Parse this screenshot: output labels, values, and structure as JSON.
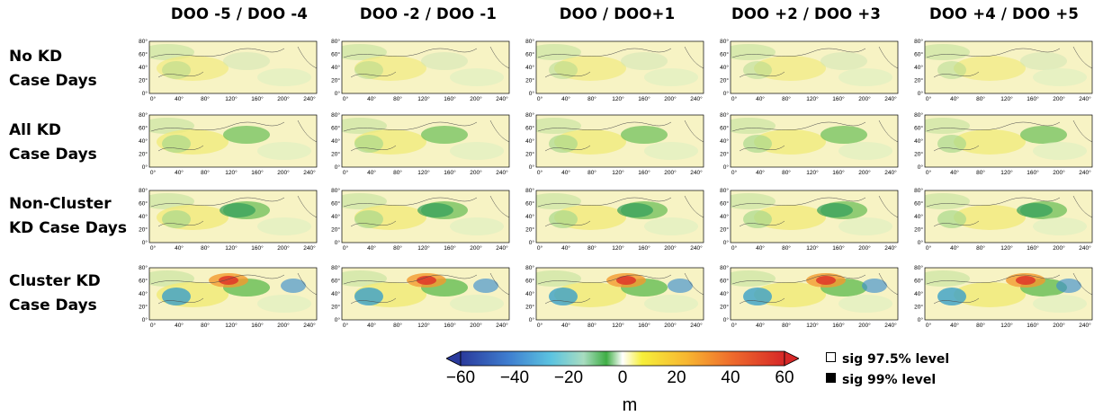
{
  "columns": [
    "DOO -5 / DOO -4",
    "DOO -2 / DOO -1",
    "DOO / DOO+1",
    "DOO +2 / DOO +3",
    "DOO +4 / DOO +5"
  ],
  "rows": [
    {
      "line1": "No KD",
      "line2": "Case Days"
    },
    {
      "line1": "All KD",
      "line2": "Case Days"
    },
    {
      "line1": "Non-Cluster",
      "line2": "KD Case Days"
    },
    {
      "line1": "Cluster KD",
      "line2": "Case Days"
    }
  ],
  "map_axes": {
    "y_ticks": [
      "0°",
      "20°",
      "40°",
      "60°",
      "80°"
    ],
    "x_ticks": [
      "0°",
      "40°",
      "80°",
      "120°",
      "160°",
      "200°",
      "240°"
    ]
  },
  "colorbar": {
    "ticks": [
      "−60",
      "−40",
      "−20",
      "0",
      "20",
      "40",
      "60"
    ],
    "unit": "m",
    "min": -60,
    "max": 60,
    "colors": [
      "#2a3a9c",
      "#3f7fd0",
      "#5cc4e0",
      "#a8dcc0",
      "#3fae45",
      "#ffffff",
      "#f6ef3a",
      "#f7b531",
      "#ee6a2c",
      "#d62727"
    ]
  },
  "legend": {
    "open_square": "sig 97.5% level",
    "filled_square": "sig 99% level"
  }
}
